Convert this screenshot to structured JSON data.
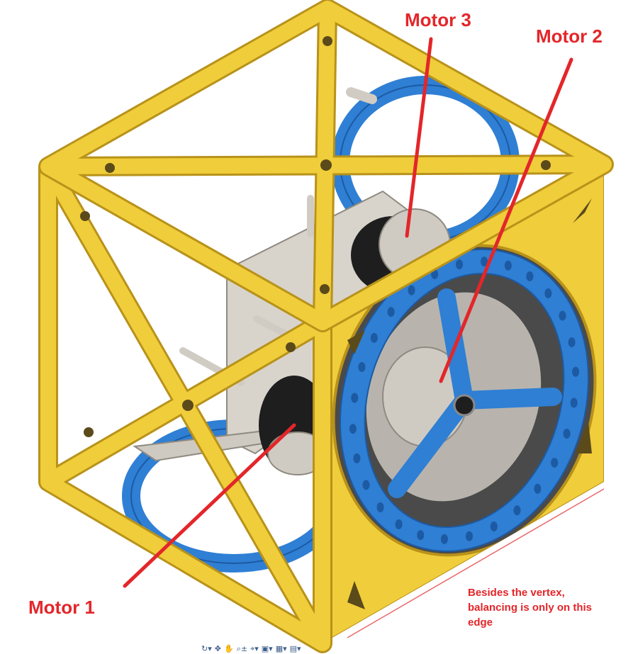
{
  "labels": {
    "motor1": "Motor 1",
    "motor2": "Motor 2",
    "motor3": "Motor 3",
    "edge_note": "Besides the vertex, balancing is only on this edge"
  },
  "colors": {
    "frame": "#f0cd3a",
    "frame_dark": "#b8921a",
    "wheel": "#2f7fd4",
    "wheel_dark": "#1c5aa3",
    "annotation": "#e3262a",
    "plate": "#d8d4cc",
    "motor_body": "#1e1e1e"
  },
  "toolbar": {
    "icons": [
      "orbit-icon",
      "pan-icon",
      "hand-icon",
      "zoom-icon",
      "fit-icon",
      "display-icon",
      "grid-icon",
      "viewports-icon"
    ]
  }
}
